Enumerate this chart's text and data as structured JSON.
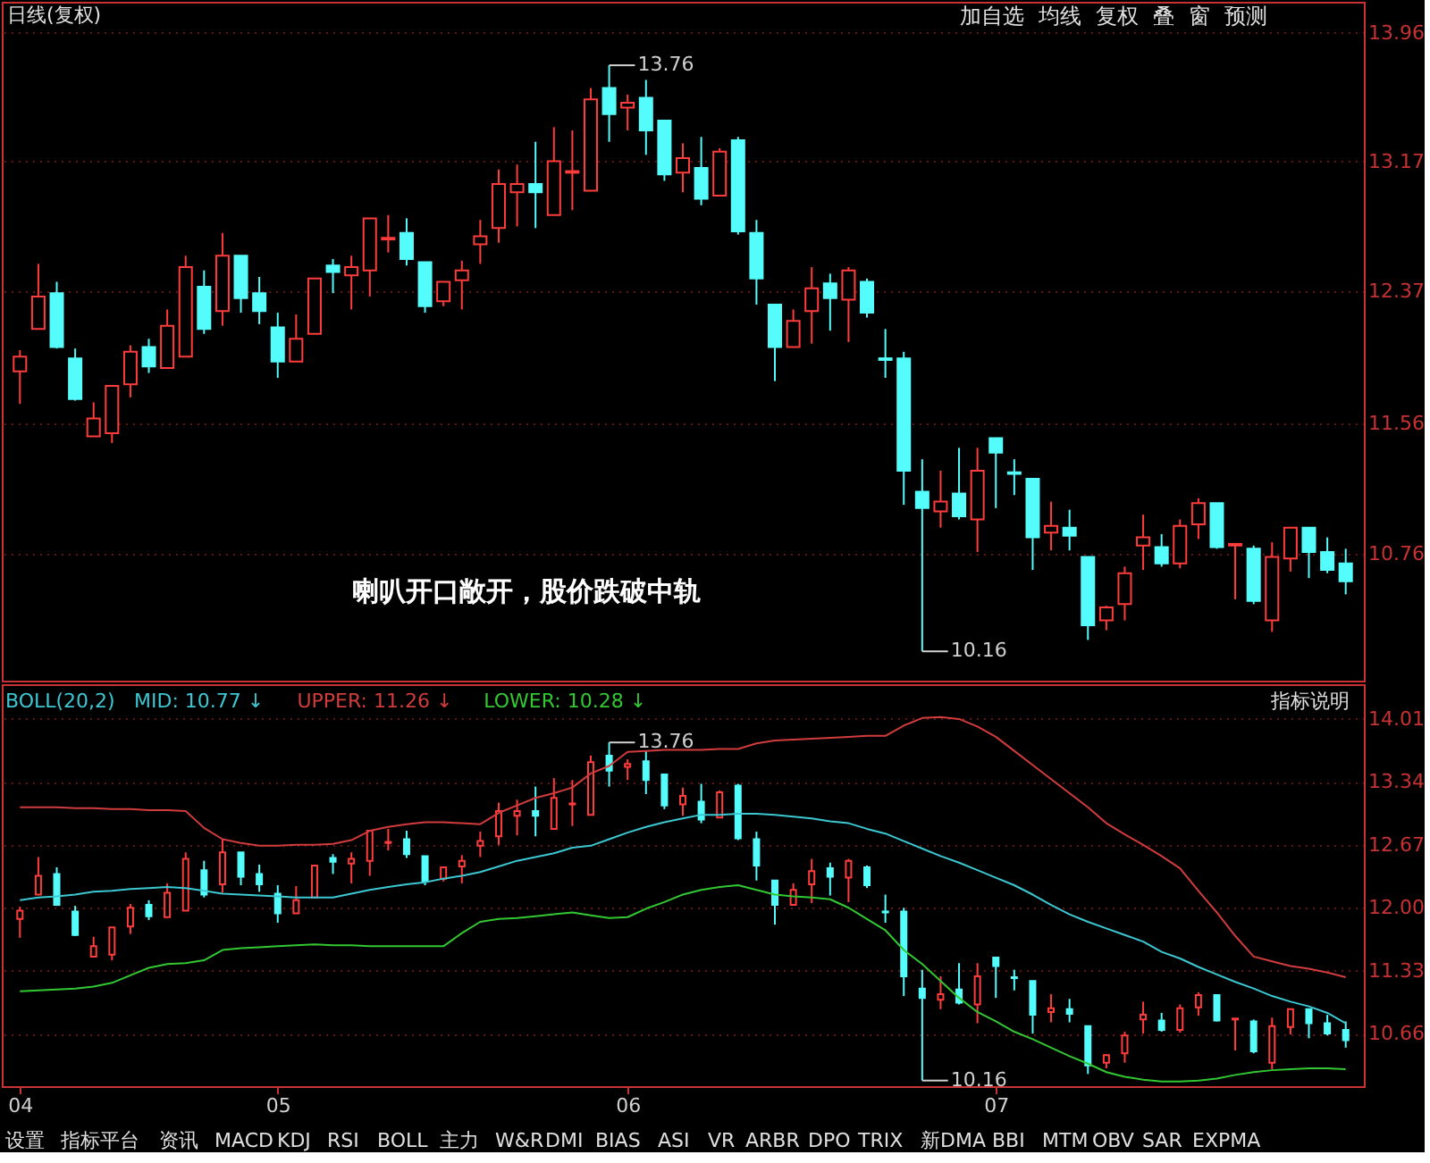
{
  "chart_data": [
    {
      "type": "candlestick",
      "categories": [
        "04",
        null,
        null,
        null,
        null,
        null,
        null,
        null,
        null,
        null,
        null,
        null,
        null,
        null,
        "05",
        null,
        null,
        null,
        null,
        null,
        null,
        null,
        null,
        null,
        null,
        null,
        null,
        null,
        null,
        null,
        null,
        null,
        null,
        "06",
        null,
        null,
        null,
        null,
        null,
        null,
        null,
        null,
        null,
        null,
        null,
        null,
        null,
        null,
        null,
        null,
        null,
        null,
        null,
        "07",
        null,
        null,
        null,
        null,
        null,
        null,
        null,
        null,
        null,
        null,
        null,
        null,
        null,
        null,
        null,
        null,
        null,
        null,
        null
      ],
      "ohlc": [
        [
          11.88,
          12.01,
          11.68,
          11.97
        ],
        [
          12.14,
          12.54,
          12.14,
          12.34
        ],
        [
          12.36,
          12.43,
          12.02,
          12.03
        ],
        [
          11.96,
          12.02,
          11.7,
          11.71
        ],
        [
          11.48,
          11.69,
          11.48,
          11.59
        ],
        [
          11.5,
          11.79,
          11.44,
          11.79
        ],
        [
          11.8,
          12.04,
          11.72,
          12.0
        ],
        [
          12.03,
          12.08,
          11.87,
          11.91
        ],
        [
          11.9,
          12.26,
          11.9,
          12.16
        ],
        [
          11.97,
          12.59,
          11.97,
          12.52
        ],
        [
          12.4,
          12.5,
          12.11,
          12.14
        ],
        [
          12.25,
          12.73,
          12.16,
          12.59
        ],
        [
          12.59,
          12.59,
          12.24,
          12.33
        ],
        [
          12.36,
          12.46,
          12.17,
          12.25
        ],
        [
          12.15,
          12.24,
          11.84,
          11.94
        ],
        [
          11.94,
          12.23,
          11.94,
          12.08
        ],
        [
          12.11,
          12.45,
          12.11,
          12.45
        ],
        [
          12.53,
          12.57,
          12.36,
          12.49
        ],
        [
          12.47,
          12.59,
          12.26,
          12.52
        ],
        [
          12.5,
          12.82,
          12.34,
          12.82
        ],
        [
          12.69,
          12.84,
          12.61,
          12.7
        ],
        [
          12.73,
          12.82,
          12.53,
          12.57
        ],
        [
          12.55,
          12.55,
          12.24,
          12.28
        ],
        [
          12.31,
          12.43,
          12.28,
          12.43
        ],
        [
          12.44,
          12.56,
          12.26,
          12.5
        ],
        [
          12.66,
          12.81,
          12.54,
          12.71
        ],
        [
          12.76,
          13.12,
          12.67,
          13.03
        ],
        [
          12.98,
          13.15,
          12.77,
          13.03
        ],
        [
          13.03,
          13.29,
          12.76,
          12.98
        ],
        [
          12.84,
          13.38,
          12.84,
          13.17
        ],
        [
          13.1,
          13.36,
          12.87,
          13.11
        ],
        [
          12.99,
          13.62,
          12.99,
          13.55
        ],
        [
          13.62,
          13.76,
          13.29,
          13.46
        ],
        [
          13.5,
          13.58,
          13.36,
          13.53
        ],
        [
          13.56,
          13.67,
          13.21,
          13.36
        ],
        [
          13.42,
          13.42,
          13.05,
          13.09
        ],
        [
          13.1,
          13.28,
          12.98,
          13.19
        ],
        [
          13.13,
          13.32,
          12.9,
          12.94
        ],
        [
          12.96,
          13.25,
          12.96,
          13.23
        ],
        [
          13.3,
          13.32,
          12.72,
          12.74
        ],
        [
          12.73,
          12.81,
          12.29,
          12.45
        ],
        [
          12.29,
          12.29,
          11.82,
          12.03
        ],
        [
          12.03,
          12.26,
          12.03,
          12.19
        ],
        [
          12.25,
          12.52,
          12.05,
          12.39
        ],
        [
          12.42,
          12.48,
          12.13,
          12.33
        ],
        [
          12.32,
          12.52,
          12.06,
          12.5
        ],
        [
          12.43,
          12.45,
          12.21,
          12.24
        ],
        [
          11.96,
          12.14,
          11.84,
          11.95
        ],
        [
          11.96,
          12.0,
          11.06,
          11.27
        ],
        [
          11.14,
          11.34,
          10.16,
          11.04
        ],
        [
          11.02,
          11.27,
          10.92,
          11.08
        ],
        [
          11.13,
          11.41,
          10.97,
          10.99
        ],
        [
          10.97,
          11.41,
          10.77,
          11.27
        ],
        [
          11.47,
          11.47,
          11.04,
          11.38
        ],
        [
          11.26,
          11.34,
          11.12,
          11.25
        ],
        [
          11.22,
          11.22,
          10.66,
          10.86
        ],
        [
          10.89,
          11.08,
          10.78,
          10.93
        ],
        [
          10.92,
          11.03,
          10.78,
          10.87
        ],
        [
          10.74,
          10.74,
          10.23,
          10.32
        ],
        [
          10.35,
          10.44,
          10.29,
          10.43
        ],
        [
          10.45,
          10.68,
          10.35,
          10.64
        ],
        [
          10.81,
          11.0,
          10.66,
          10.86
        ],
        [
          10.8,
          10.88,
          10.68,
          10.7
        ],
        [
          10.7,
          10.97,
          10.67,
          10.93
        ],
        [
          10.94,
          11.1,
          10.85,
          11.07
        ],
        [
          11.07,
          11.07,
          10.79,
          10.8
        ],
        [
          10.81,
          10.82,
          10.48,
          10.82
        ],
        [
          10.79,
          10.81,
          10.45,
          10.47
        ],
        [
          10.35,
          10.83,
          10.28,
          10.74
        ],
        [
          10.73,
          10.92,
          10.65,
          10.92
        ],
        [
          10.92,
          10.92,
          10.61,
          10.77
        ],
        [
          10.77,
          10.86,
          10.64,
          10.66
        ],
        [
          10.7,
          10.79,
          10.51,
          10.59
        ]
      ],
      "colors": [
        "#ff3c3c",
        "#ff3c3c",
        "#54fcfc",
        "#54fcfc",
        "#ff3c3c",
        "#ff3c3c",
        "#ff3c3c",
        "#54fcfc",
        "#ff3c3c",
        "#ff3c3c",
        "#54fcfc",
        "#ff3c3c",
        "#54fcfc",
        "#54fcfc",
        "#54fcfc",
        "#ff3c3c",
        "#ff3c3c",
        "#54fcfc",
        "#ff3c3c",
        "#ff3c3c",
        "#ff3c3c",
        "#54fcfc",
        "#54fcfc",
        "#ff3c3c",
        "#ff3c3c",
        "#ff3c3c",
        "#ff3c3c",
        "#ff3c3c",
        "#54fcfc",
        "#ff3c3c",
        "#ff3c3c",
        "#ff3c3c",
        "#54fcfc",
        "#ff3c3c",
        "#54fcfc",
        "#54fcfc",
        "#ff3c3c",
        "#54fcfc",
        "#ff3c3c",
        "#54fcfc",
        "#54fcfc",
        "#54fcfc",
        "#ff3c3c",
        "#ff3c3c",
        "#54fcfc",
        "#ff3c3c",
        "#54fcfc",
        "#54fcfc",
        "#54fcfc",
        "#54fcfc",
        "#ff3c3c",
        "#54fcfc",
        "#ff3c3c",
        "#54fcfc",
        "#54fcfc",
        "#54fcfc",
        "#ff3c3c",
        "#54fcfc",
        "#54fcfc",
        "#ff3c3c",
        "#ff3c3c",
        "#ff3c3c",
        "#54fcfc",
        "#ff3c3c",
        "#ff3c3c",
        "#54fcfc",
        "#ff3c3c",
        "#54fcfc",
        "#ff3c3c",
        "#ff3c3c",
        "#54fcfc",
        "#54fcfc",
        "#54fcfc"
      ],
      "ylim": [
        9.98,
        14.15
      ],
      "yticks": [
        10.76,
        11.56,
        12.37,
        13.17,
        13.96
      ],
      "grid": "y",
      "tick_labels": "y",
      "annotations": [
        "日线(复权)",
        "喇叭开口敞开，股价跌破中轨",
        "加自选",
        "均线",
        "复权",
        "叠",
        "窗",
        "预测",
        "13.76",
        "10.16"
      ]
    },
    {
      "type": "candlestick",
      "title": "BOLL(20,2)",
      "categories": [
        "04",
        null,
        null,
        null,
        null,
        null,
        null,
        null,
        null,
        null,
        null,
        null,
        null,
        null,
        "05",
        null,
        null,
        null,
        null,
        null,
        null,
        null,
        null,
        null,
        null,
        null,
        null,
        null,
        null,
        null,
        null,
        null,
        null,
        "06",
        null,
        null,
        null,
        null,
        null,
        null,
        null,
        null,
        null,
        null,
        null,
        null,
        null,
        null,
        null,
        null,
        null,
        null,
        null,
        "07",
        null,
        null,
        null,
        null,
        null,
        null,
        null,
        null,
        null,
        null,
        null,
        null,
        null,
        null,
        null,
        null,
        null,
        null,
        null
      ],
      "ohlc": [
        [
          11.88,
          12.01,
          11.68,
          11.97
        ],
        [
          12.14,
          12.54,
          12.14,
          12.34
        ],
        [
          12.36,
          12.43,
          12.02,
          12.03
        ],
        [
          11.96,
          12.02,
          11.7,
          11.71
        ],
        [
          11.48,
          11.69,
          11.48,
          11.59
        ],
        [
          11.5,
          11.79,
          11.44,
          11.79
        ],
        [
          11.8,
          12.04,
          11.72,
          12.0
        ],
        [
          12.03,
          12.08,
          11.87,
          11.91
        ],
        [
          11.9,
          12.26,
          11.9,
          12.16
        ],
        [
          11.97,
          12.59,
          11.97,
          12.52
        ],
        [
          12.4,
          12.5,
          12.11,
          12.14
        ],
        [
          12.25,
          12.73,
          12.16,
          12.59
        ],
        [
          12.59,
          12.59,
          12.24,
          12.33
        ],
        [
          12.36,
          12.46,
          12.17,
          12.25
        ],
        [
          12.15,
          12.24,
          11.84,
          11.94
        ],
        [
          11.94,
          12.23,
          11.94,
          12.08
        ],
        [
          12.11,
          12.45,
          12.11,
          12.45
        ],
        [
          12.53,
          12.57,
          12.36,
          12.49
        ],
        [
          12.47,
          12.59,
          12.26,
          12.52
        ],
        [
          12.5,
          12.82,
          12.34,
          12.82
        ],
        [
          12.69,
          12.84,
          12.61,
          12.7
        ],
        [
          12.73,
          12.82,
          12.53,
          12.57
        ],
        [
          12.55,
          12.55,
          12.24,
          12.28
        ],
        [
          12.31,
          12.43,
          12.28,
          12.43
        ],
        [
          12.44,
          12.56,
          12.26,
          12.5
        ],
        [
          12.66,
          12.81,
          12.54,
          12.71
        ],
        [
          12.76,
          13.12,
          12.67,
          13.03
        ],
        [
          12.98,
          13.15,
          12.77,
          13.03
        ],
        [
          13.03,
          13.29,
          12.76,
          12.98
        ],
        [
          12.84,
          13.38,
          12.84,
          13.17
        ],
        [
          13.1,
          13.36,
          12.87,
          13.11
        ],
        [
          12.99,
          13.62,
          12.99,
          13.55
        ],
        [
          13.62,
          13.76,
          13.29,
          13.46
        ],
        [
          13.5,
          13.58,
          13.36,
          13.53
        ],
        [
          13.56,
          13.67,
          13.21,
          13.36
        ],
        [
          13.42,
          13.42,
          13.05,
          13.09
        ],
        [
          13.1,
          13.28,
          12.98,
          13.19
        ],
        [
          13.13,
          13.32,
          12.9,
          12.94
        ],
        [
          12.96,
          13.25,
          12.96,
          13.23
        ],
        [
          13.3,
          13.32,
          12.72,
          12.74
        ],
        [
          12.73,
          12.81,
          12.29,
          12.45
        ],
        [
          12.29,
          12.29,
          11.82,
          12.03
        ],
        [
          12.03,
          12.26,
          12.03,
          12.19
        ],
        [
          12.25,
          12.52,
          12.05,
          12.39
        ],
        [
          12.42,
          12.48,
          12.13,
          12.33
        ],
        [
          12.32,
          12.52,
          12.06,
          12.5
        ],
        [
          12.43,
          12.45,
          12.21,
          12.24
        ],
        [
          11.96,
          12.14,
          11.84,
          11.95
        ],
        [
          11.96,
          12.0,
          11.06,
          11.27
        ],
        [
          11.14,
          11.34,
          10.16,
          11.04
        ],
        [
          11.02,
          11.27,
          10.92,
          11.08
        ],
        [
          11.13,
          11.41,
          10.97,
          10.99
        ],
        [
          10.97,
          11.41,
          10.77,
          11.27
        ],
        [
          11.47,
          11.47,
          11.04,
          11.38
        ],
        [
          11.26,
          11.34,
          11.12,
          11.25
        ],
        [
          11.22,
          11.22,
          10.66,
          10.86
        ],
        [
          10.89,
          11.08,
          10.78,
          10.93
        ],
        [
          10.92,
          11.03,
          10.78,
          10.87
        ],
        [
          10.74,
          10.74,
          10.23,
          10.32
        ],
        [
          10.35,
          10.44,
          10.29,
          10.43
        ],
        [
          10.45,
          10.68,
          10.35,
          10.64
        ],
        [
          10.81,
          11.0,
          10.66,
          10.86
        ],
        [
          10.8,
          10.88,
          10.68,
          10.7
        ],
        [
          10.7,
          10.97,
          10.67,
          10.93
        ],
        [
          10.94,
          11.1,
          10.85,
          11.07
        ],
        [
          11.07,
          11.07,
          10.79,
          10.8
        ],
        [
          10.81,
          10.82,
          10.48,
          10.82
        ],
        [
          10.79,
          10.81,
          10.45,
          10.47
        ],
        [
          10.35,
          10.83,
          10.28,
          10.74
        ],
        [
          10.73,
          10.92,
          10.65,
          10.92
        ],
        [
          10.92,
          10.92,
          10.61,
          10.77
        ],
        [
          10.77,
          10.86,
          10.64,
          10.66
        ],
        [
          10.7,
          10.79,
          10.51,
          10.59
        ]
      ],
      "colors": [
        "#ff3c3c",
        "#ff3c3c",
        "#54fcfc",
        "#54fcfc",
        "#ff3c3c",
        "#ff3c3c",
        "#ff3c3c",
        "#54fcfc",
        "#ff3c3c",
        "#ff3c3c",
        "#54fcfc",
        "#ff3c3c",
        "#54fcfc",
        "#54fcfc",
        "#54fcfc",
        "#ff3c3c",
        "#ff3c3c",
        "#54fcfc",
        "#ff3c3c",
        "#ff3c3c",
        "#ff3c3c",
        "#54fcfc",
        "#54fcfc",
        "#ff3c3c",
        "#ff3c3c",
        "#ff3c3c",
        "#ff3c3c",
        "#ff3c3c",
        "#54fcfc",
        "#ff3c3c",
        "#ff3c3c",
        "#ff3c3c",
        "#54fcfc",
        "#ff3c3c",
        "#54fcfc",
        "#54fcfc",
        "#ff3c3c",
        "#54fcfc",
        "#ff3c3c",
        "#54fcfc",
        "#54fcfc",
        "#54fcfc",
        "#ff3c3c",
        "#ff3c3c",
        "#54fcfc",
        "#ff3c3c",
        "#54fcfc",
        "#54fcfc",
        "#54fcfc",
        "#54fcfc",
        "#ff3c3c",
        "#54fcfc",
        "#ff3c3c",
        "#54fcfc",
        "#54fcfc",
        "#54fcfc",
        "#ff3c3c",
        "#54fcfc",
        "#54fcfc",
        "#ff3c3c",
        "#ff3c3c",
        "#ff3c3c",
        "#54fcfc",
        "#ff3c3c",
        "#ff3c3c",
        "#54fcfc",
        "#ff3c3c",
        "#54fcfc",
        "#ff3c3c",
        "#ff3c3c",
        "#54fcfc",
        "#54fcfc",
        "#54fcfc"
      ],
      "series": [
        {
          "name": "MID: 10.77 ↓",
          "type": "line",
          "color": "#3cc8d2",
          "values": [
            12.08,
            12.11,
            12.12,
            12.14,
            12.17,
            12.18,
            12.2,
            12.21,
            12.22,
            12.21,
            12.18,
            12.15,
            12.14,
            12.13,
            12.12,
            12.11,
            12.11,
            12.11,
            12.15,
            12.19,
            12.22,
            12.25,
            12.27,
            12.31,
            12.34,
            12.38,
            12.44,
            12.5,
            12.54,
            12.58,
            12.64,
            12.66,
            12.73,
            12.8,
            12.86,
            12.91,
            12.95,
            12.99,
            12.99,
            13.0,
            13.0,
            12.99,
            12.97,
            12.95,
            12.92,
            12.9,
            12.84,
            12.79,
            12.71,
            12.63,
            12.55,
            12.48,
            12.4,
            12.32,
            12.24,
            12.14,
            12.03,
            11.93,
            11.85,
            11.78,
            11.71,
            11.64,
            11.53,
            11.46,
            11.37,
            11.29,
            11.21,
            11.14,
            11.06,
            11.0,
            10.95,
            10.88,
            10.77
          ]
        },
        {
          "name": "UPPER: 11.26 ↓",
          "type": "line",
          "color": "#d23c3c",
          "values": [
            13.07,
            13.07,
            13.07,
            13.06,
            13.06,
            13.05,
            13.05,
            13.04,
            13.04,
            13.03,
            12.85,
            12.73,
            12.69,
            12.66,
            12.66,
            12.67,
            12.67,
            12.68,
            12.72,
            12.82,
            12.86,
            12.89,
            12.91,
            12.91,
            12.9,
            12.89,
            13.01,
            13.09,
            13.17,
            13.22,
            13.28,
            13.43,
            13.51,
            13.66,
            13.67,
            13.68,
            13.68,
            13.68,
            13.69,
            13.69,
            13.75,
            13.78,
            13.79,
            13.8,
            13.81,
            13.82,
            13.83,
            13.83,
            13.94,
            14.02,
            14.03,
            14.01,
            13.93,
            13.82,
            13.67,
            13.52,
            13.37,
            13.22,
            13.07,
            12.9,
            12.78,
            12.67,
            12.55,
            12.42,
            12.18,
            11.95,
            11.7,
            11.48,
            11.43,
            11.38,
            11.35,
            11.31,
            11.26
          ]
        },
        {
          "name": "LOWER: 10.28 ↓",
          "type": "line",
          "color": "#32c832",
          "values": [
            11.11,
            11.12,
            11.13,
            11.14,
            11.16,
            11.2,
            11.28,
            11.36,
            11.4,
            11.41,
            11.44,
            11.55,
            11.57,
            11.58,
            11.59,
            11.6,
            11.61,
            11.6,
            11.6,
            11.59,
            11.59,
            11.59,
            11.59,
            11.59,
            11.73,
            11.85,
            11.88,
            11.89,
            11.91,
            11.93,
            11.95,
            11.92,
            11.89,
            11.9,
            11.99,
            12.06,
            12.14,
            12.19,
            12.22,
            12.24,
            12.19,
            12.14,
            12.12,
            12.11,
            12.09,
            12.0,
            11.88,
            11.76,
            11.55,
            11.4,
            11.22,
            11.04,
            10.89,
            10.79,
            10.68,
            10.6,
            10.51,
            10.42,
            10.34,
            10.25,
            10.2,
            10.17,
            10.15,
            10.15,
            10.16,
            10.18,
            10.22,
            10.25,
            10.27,
            10.28,
            10.29,
            10.29,
            10.28
          ]
        }
      ],
      "legend": "top left",
      "ylim": [
        10.1,
        14.38
      ],
      "yticks": [
        14.01,
        13.34,
        12.67,
        {
          "value": 12.0,
          "label": "12.00"
        },
        11.33,
        10.66
      ],
      "grid": "y",
      "annotations": [
        "指标说明",
        "设置",
        "指标平台",
        "资讯",
        "MACD",
        "KDJ",
        "RSI",
        "BOLL",
        "主力",
        "W&R",
        "DMI",
        "BIAS",
        "ASI",
        "VR",
        "ARBR",
        "DPO",
        "TRIX",
        "新DMA",
        "BBI",
        "MTM",
        "OBV",
        "SAR",
        "EXPMA",
        "13.76",
        "10.16"
      ]
    }
  ]
}
